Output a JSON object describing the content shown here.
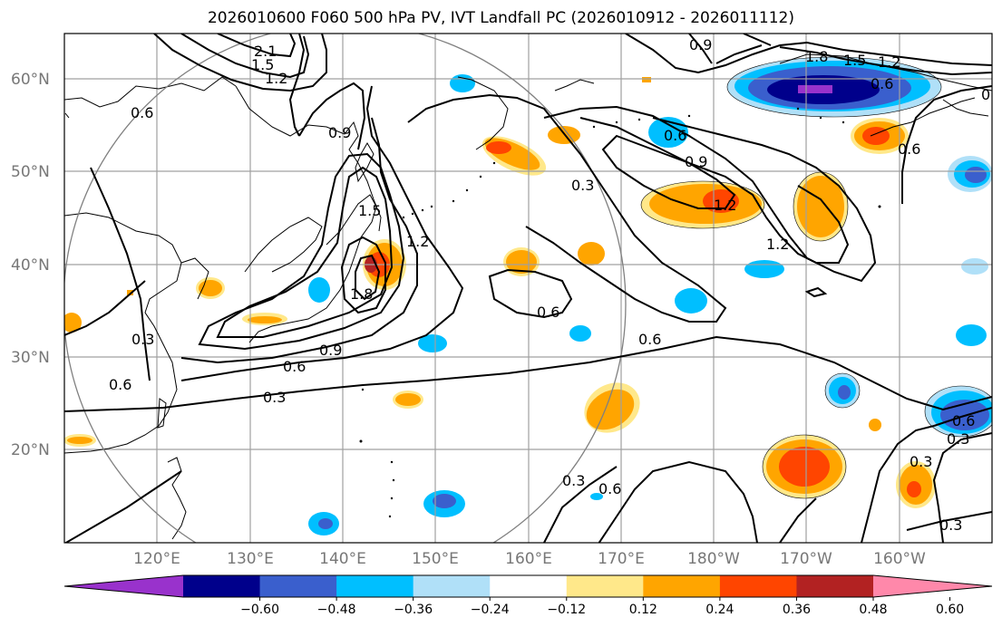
{
  "title": "2026010600 F060 500 hPa PV, IVT Landfall PC (2026010912 - 2026011112)",
  "map": {
    "lat_ticks": [
      "60°N",
      "50°N",
      "40°N",
      "30°N",
      "20°N"
    ],
    "lon_ticks": [
      "120°E",
      "130°E",
      "140°E",
      "150°E",
      "160°E",
      "170°E",
      "180°W",
      "170°W",
      "160°W"
    ],
    "grid_color": "#a0a0a0",
    "coast_color": "#000000",
    "circle_color": "#808080",
    "contour_labels": [
      "2.1",
      "1.5",
      "1.2",
      "0.6",
      "0.9",
      "1.5",
      "1.2",
      "1.8",
      "0.9",
      "0.6",
      "0.3",
      "0.3",
      "0.6",
      "0.3",
      "0.6",
      "0.6",
      "0.3",
      "0.6",
      "0.9",
      "1.2",
      "1.2",
      "0.6",
      "0.9",
      "1.8",
      "1.5",
      "1.2",
      "0.6",
      "0.6",
      "0.3",
      "0.6",
      "0.3",
      "0.3",
      "0.3"
    ]
  },
  "colorbar": {
    "ticks": [
      "−0.60",
      "−0.48",
      "−0.36",
      "−0.24",
      "−0.12",
      "0.12",
      "0.24",
      "0.36",
      "0.48",
      "0.60"
    ],
    "colors": [
      "#9932cc",
      "#00008b",
      "#3a5fcd",
      "#00bfff",
      "#b0e0f8",
      "#ffffff",
      "#ffe88a",
      "#ffa500",
      "#ff4500",
      "#b22222",
      "#ff88aa"
    ]
  }
}
